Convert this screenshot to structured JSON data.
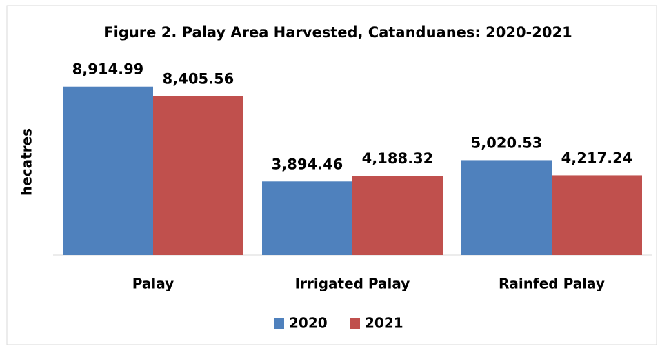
{
  "chart_data": {
    "type": "bar",
    "title": "Figure 2. Palay Area Harvested, Catanduanes:  2020-2021",
    "y_label": "hecatres",
    "categories": [
      "Palay",
      "Irrigated Palay",
      "Rainfed Palay"
    ],
    "series": [
      {
        "name": "2020",
        "color": "#4f81bd",
        "values": [
          8914.99,
          3894.46,
          5020.53
        ],
        "value_labels": [
          "8,914.99",
          "3,894.46",
          "5,020.53"
        ]
      },
      {
        "name": "2021",
        "color": "#c0504d",
        "values": [
          8405.56,
          4188.32,
          4217.24
        ],
        "value_labels": [
          "8,405.56",
          "4,188.32",
          "4,217.24"
        ]
      }
    ],
    "ylim": [
      0,
      10000
    ],
    "legend": "bottom"
  }
}
